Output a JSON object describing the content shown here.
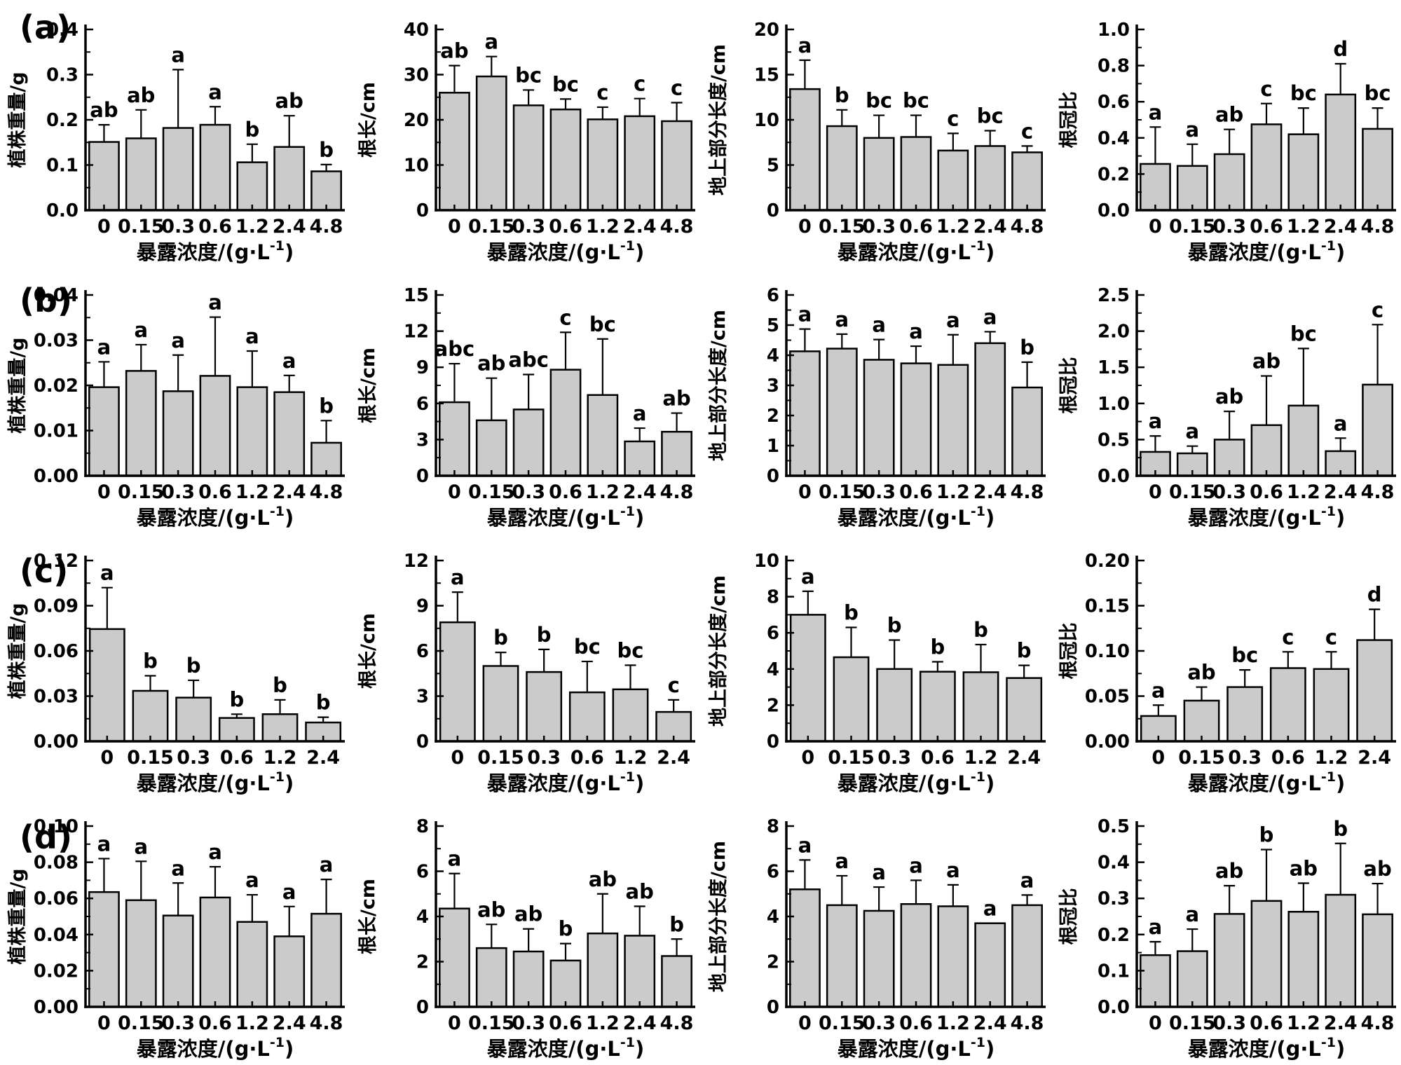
{
  "panels": [
    {
      "label": "(a)"
    },
    {
      "label": "(b)"
    },
    {
      "label": "(c)"
    },
    {
      "label": "(d)"
    }
  ],
  "xlabel": {
    "main": "暴露浓度/(g·L",
    "sup": "-1",
    "close": ")"
  },
  "colors": {
    "bar_fill": "#cbcbcb",
    "bar_stroke": "#000000",
    "axis": "#000000",
    "background": "#ffffff"
  },
  "chart_data": [
    {
      "id": "a1",
      "panel": "(a)",
      "type": "bar",
      "ylabel": "植株重量/g",
      "categories": [
        "0",
        "0.15",
        "0.3",
        "0.6",
        "1.2",
        "2.4",
        "4.8"
      ],
      "values": [
        0.151,
        0.159,
        0.182,
        0.189,
        0.106,
        0.14,
        0.086
      ],
      "errors": [
        0.038,
        0.063,
        0.129,
        0.04,
        0.04,
        0.069,
        0.015
      ],
      "letters": [
        "ab",
        "ab",
        "a",
        "a",
        "b",
        "ab",
        "b"
      ],
      "ylim": [
        0,
        0.4
      ],
      "yticks": [
        0,
        0.1,
        0.2,
        0.3,
        0.4
      ],
      "ytick_labels": [
        "0.0",
        "0.1",
        "0.2",
        "0.3",
        "0.4"
      ]
    },
    {
      "id": "a2",
      "panel": "(a)",
      "type": "bar",
      "ylabel": "根长/cm",
      "categories": [
        "0",
        "0.15",
        "0.3",
        "0.6",
        "1.2",
        "2.4",
        "4.8"
      ],
      "values": [
        26.0,
        29.6,
        23.2,
        22.3,
        20.1,
        20.8,
        19.7
      ],
      "errors": [
        6.0,
        4.4,
        3.4,
        2.3,
        2.7,
        3.9,
        4.1
      ],
      "letters": [
        "ab",
        "a",
        "bc",
        "bc",
        "c",
        "c",
        "c"
      ],
      "ylim": [
        0,
        40
      ],
      "yticks": [
        0,
        10,
        20,
        30,
        40
      ],
      "ytick_labels": [
        "0",
        "10",
        "20",
        "30",
        "40"
      ]
    },
    {
      "id": "a3",
      "panel": "(a)",
      "type": "bar",
      "ylabel": "地上部分长度/cm",
      "categories": [
        "0",
        "0.15",
        "0.3",
        "0.6",
        "1.2",
        "2.4",
        "4.8"
      ],
      "values": [
        13.4,
        9.3,
        8.0,
        8.1,
        6.6,
        7.1,
        6.4
      ],
      "errors": [
        3.2,
        1.8,
        2.5,
        2.4,
        1.9,
        1.7,
        0.7
      ],
      "letters": [
        "a",
        "b",
        "bc",
        "bc",
        "c",
        "bc",
        "c"
      ],
      "ylim": [
        0,
        20
      ],
      "yticks": [
        0,
        5,
        10,
        15,
        20
      ],
      "ytick_labels": [
        "0",
        "5",
        "10",
        "15",
        "20"
      ]
    },
    {
      "id": "a4",
      "panel": "(a)",
      "type": "bar",
      "ylabel": "根冠比",
      "categories": [
        "0",
        "0.15",
        "0.3",
        "0.6",
        "1.2",
        "2.4",
        "4.8"
      ],
      "values": [
        0.256,
        0.245,
        0.31,
        0.475,
        0.42,
        0.64,
        0.45
      ],
      "errors": [
        0.204,
        0.12,
        0.137,
        0.115,
        0.145,
        0.17,
        0.115
      ],
      "letters": [
        "a",
        "a",
        "ab",
        "c",
        "bc",
        "d",
        "bc"
      ],
      "ylim": [
        0,
        1.0
      ],
      "yticks": [
        0,
        0.2,
        0.4,
        0.6,
        0.8,
        1.0
      ],
      "ytick_labels": [
        "0.0",
        "0.2",
        "0.4",
        "0.6",
        "0.8",
        "1.0"
      ]
    },
    {
      "id": "b1",
      "panel": "(b)",
      "type": "bar",
      "ylabel": "植株重量/g",
      "categories": [
        "0",
        "0.15",
        "0.3",
        "0.6",
        "1.2",
        "2.4",
        "4.8"
      ],
      "values": [
        0.0196,
        0.0232,
        0.0187,
        0.0221,
        0.0196,
        0.0185,
        0.0073
      ],
      "errors": [
        0.0056,
        0.0058,
        0.008,
        0.013,
        0.008,
        0.0037,
        0.0049
      ],
      "letters": [
        "a",
        "a",
        "a",
        "a",
        "a",
        "a",
        "b"
      ],
      "ylim": [
        0,
        0.04
      ],
      "yticks": [
        0,
        0.01,
        0.02,
        0.03,
        0.04
      ],
      "ytick_labels": [
        "0.00",
        "0.01",
        "0.02",
        "0.03",
        "0.04"
      ]
    },
    {
      "id": "b2",
      "panel": "(b)",
      "type": "bar",
      "ylabel": "根长/cm",
      "categories": [
        "0",
        "0.15",
        "0.3",
        "0.6",
        "1.2",
        "2.4",
        "4.8"
      ],
      "values": [
        6.1,
        4.6,
        5.5,
        8.8,
        6.7,
        2.85,
        3.65
      ],
      "errors": [
        3.2,
        3.5,
        2.9,
        3.1,
        4.65,
        1.1,
        1.55
      ],
      "letters": [
        "abc",
        "ab",
        "abc",
        "c",
        "bc",
        "a",
        "ab"
      ],
      "ylim": [
        0,
        15
      ],
      "yticks": [
        0,
        3,
        6,
        9,
        12,
        15
      ],
      "ytick_labels": [
        "0",
        "3",
        "6",
        "9",
        "12",
        "15"
      ]
    },
    {
      "id": "b3",
      "panel": "(b)",
      "type": "bar",
      "ylabel": "地上部分长度/cm",
      "categories": [
        "0",
        "0.15",
        "0.3",
        "0.6",
        "1.2",
        "2.4",
        "4.8"
      ],
      "values": [
        4.13,
        4.22,
        3.85,
        3.73,
        3.68,
        4.4,
        2.93
      ],
      "errors": [
        0.74,
        0.48,
        0.67,
        0.57,
        1.0,
        0.38,
        0.84
      ],
      "letters": [
        "a",
        "a",
        "a",
        "a",
        "a",
        "a",
        "b"
      ],
      "ylim": [
        0,
        6
      ],
      "yticks": [
        0,
        1,
        2,
        3,
        4,
        5,
        6
      ],
      "ytick_labels": [
        "0",
        "1",
        "2",
        "3",
        "4",
        "5",
        "6"
      ]
    },
    {
      "id": "b4",
      "panel": "(b)",
      "type": "bar",
      "ylabel": "根冠比",
      "categories": [
        "0",
        "0.15",
        "0.3",
        "0.6",
        "1.2",
        "2.4",
        "4.8"
      ],
      "values": [
        0.33,
        0.31,
        0.5,
        0.7,
        0.97,
        0.34,
        1.26
      ],
      "errors": [
        0.22,
        0.1,
        0.39,
        0.68,
        0.79,
        0.18,
        0.83
      ],
      "letters": [
        "a",
        "a",
        "ab",
        "ab",
        "bc",
        "a",
        "c"
      ],
      "ylim": [
        0,
        2.5
      ],
      "yticks": [
        0,
        0.5,
        1.0,
        1.5,
        2.0,
        2.5
      ],
      "ytick_labels": [
        "0.0",
        "0.5",
        "1.0",
        "1.5",
        "2.0",
        "2.5"
      ]
    },
    {
      "id": "c1",
      "panel": "(c)",
      "type": "bar",
      "ylabel": "植株重量/g",
      "categories": [
        "0",
        "0.15",
        "0.3",
        "0.6",
        "1.2",
        "2.4"
      ],
      "values": [
        0.0745,
        0.0335,
        0.029,
        0.0155,
        0.018,
        0.0125
      ],
      "errors": [
        0.0275,
        0.01,
        0.0115,
        0.0025,
        0.0095,
        0.0035
      ],
      "letters": [
        "a",
        "b",
        "b",
        "b",
        "b",
        "b"
      ],
      "ylim": [
        0,
        0.12
      ],
      "yticks": [
        0,
        0.03,
        0.06,
        0.09,
        0.12
      ],
      "ytick_labels": [
        "0.00",
        "0.03",
        "0.06",
        "0.09",
        "0.12"
      ]
    },
    {
      "id": "c2",
      "panel": "(c)",
      "type": "bar",
      "ylabel": "根长/cm",
      "categories": [
        "0",
        "0.15",
        "0.3",
        "0.6",
        "1.2",
        "2.4"
      ],
      "values": [
        7.9,
        5.0,
        4.6,
        3.25,
        3.45,
        1.95
      ],
      "errors": [
        2.0,
        0.9,
        1.5,
        2.05,
        1.6,
        0.8
      ],
      "letters": [
        "a",
        "b",
        "b",
        "bc",
        "bc",
        "c"
      ],
      "ylim": [
        0,
        12
      ],
      "yticks": [
        0,
        3,
        6,
        9,
        12
      ],
      "ytick_labels": [
        "0",
        "3",
        "6",
        "9",
        "12"
      ]
    },
    {
      "id": "c3",
      "panel": "(c)",
      "type": "bar",
      "ylabel": "地上部分长度/cm",
      "categories": [
        "0",
        "0.15",
        "0.3",
        "0.6",
        "1.2",
        "2.4"
      ],
      "values": [
        7.0,
        4.65,
        4.0,
        3.85,
        3.82,
        3.5
      ],
      "errors": [
        1.3,
        1.65,
        1.6,
        0.55,
        1.53,
        0.7
      ],
      "letters": [
        "a",
        "b",
        "b",
        "b",
        "b",
        "b"
      ],
      "ylim": [
        0,
        10
      ],
      "yticks": [
        0,
        2,
        4,
        6,
        8,
        10
      ],
      "ytick_labels": [
        "0",
        "2",
        "4",
        "6",
        "8",
        "10"
      ]
    },
    {
      "id": "c4",
      "panel": "(c)",
      "type": "bar",
      "ylabel": "根冠比",
      "categories": [
        "0",
        "0.15",
        "0.3",
        "0.6",
        "1.2",
        "2.4"
      ],
      "values": [
        0.028,
        0.045,
        0.06,
        0.081,
        0.08,
        0.112
      ],
      "errors": [
        0.012,
        0.015,
        0.019,
        0.018,
        0.019,
        0.034
      ],
      "letters": [
        "a",
        "ab",
        "bc",
        "c",
        "c",
        "d"
      ],
      "ylim": [
        0,
        0.2
      ],
      "yticks": [
        0,
        0.05,
        0.1,
        0.15,
        0.2
      ],
      "ytick_labels": [
        "0.00",
        "0.05",
        "0.10",
        "0.15",
        "0.20"
      ]
    },
    {
      "id": "d1",
      "panel": "(d)",
      "type": "bar",
      "ylabel": "植株重量/g",
      "categories": [
        "0",
        "0.15",
        "0.3",
        "0.6",
        "1.2",
        "2.4",
        "4.8"
      ],
      "values": [
        0.0635,
        0.059,
        0.0505,
        0.0605,
        0.047,
        0.039,
        0.0515
      ],
      "errors": [
        0.0185,
        0.0215,
        0.018,
        0.017,
        0.015,
        0.0165,
        0.019
      ],
      "letters": [
        "a",
        "a",
        "a",
        "a",
        "a",
        "a",
        "a"
      ],
      "ylim": [
        0,
        0.1
      ],
      "yticks": [
        0,
        0.02,
        0.04,
        0.06,
        0.08,
        0.1
      ],
      "ytick_labels": [
        "0.00",
        "0.02",
        "0.04",
        "0.06",
        "0.08",
        "0.10"
      ]
    },
    {
      "id": "d2",
      "panel": "(d)",
      "type": "bar",
      "ylabel": "根长/cm",
      "categories": [
        "0",
        "0.15",
        "0.3",
        "0.6",
        "1.2",
        "2.4",
        "4.8"
      ],
      "values": [
        4.35,
        2.6,
        2.45,
        2.05,
        3.25,
        3.15,
        2.25
      ],
      "errors": [
        1.55,
        1.05,
        1.0,
        0.75,
        1.75,
        1.3,
        0.75
      ],
      "letters": [
        "a",
        "ab",
        "ab",
        "b",
        "ab",
        "ab",
        "b"
      ],
      "ylim": [
        0,
        8
      ],
      "yticks": [
        0,
        2,
        4,
        6,
        8
      ],
      "ytick_labels": [
        "0",
        "2",
        "4",
        "6",
        "8"
      ]
    },
    {
      "id": "d3",
      "panel": "(d)",
      "type": "bar",
      "ylabel": "地上部分长度/cm",
      "categories": [
        "0",
        "0.15",
        "0.3",
        "0.6",
        "1.2",
        "2.4",
        "4.8"
      ],
      "values": [
        5.2,
        4.5,
        4.25,
        4.55,
        4.45,
        3.7,
        4.5
      ],
      "errors": [
        1.3,
        1.3,
        1.05,
        1.05,
        0.95,
        0,
        0.45
      ],
      "letters": [
        "a",
        "a",
        "a",
        "a",
        "a",
        "a",
        "a"
      ],
      "ylim": [
        0,
        8
      ],
      "yticks": [
        0,
        2,
        4,
        6,
        8
      ],
      "ytick_labels": [
        "0",
        "2",
        "4",
        "6",
        "8"
      ]
    },
    {
      "id": "d4",
      "panel": "(d)",
      "type": "bar",
      "ylabel": "根冠比",
      "categories": [
        "0",
        "0.15",
        "0.3",
        "0.6",
        "1.2",
        "2.4",
        "4.8"
      ],
      "values": [
        0.143,
        0.154,
        0.257,
        0.293,
        0.263,
        0.31,
        0.256
      ],
      "errors": [
        0.037,
        0.061,
        0.078,
        0.142,
        0.079,
        0.142,
        0.085
      ],
      "letters": [
        "a",
        "a",
        "ab",
        "b",
        "ab",
        "b",
        "ab"
      ],
      "ylim": [
        0,
        0.5
      ],
      "yticks": [
        0,
        0.1,
        0.2,
        0.3,
        0.4,
        0.5
      ],
      "ytick_labels": [
        "0.0",
        "0.1",
        "0.2",
        "0.3",
        "0.4",
        "0.5"
      ]
    }
  ]
}
